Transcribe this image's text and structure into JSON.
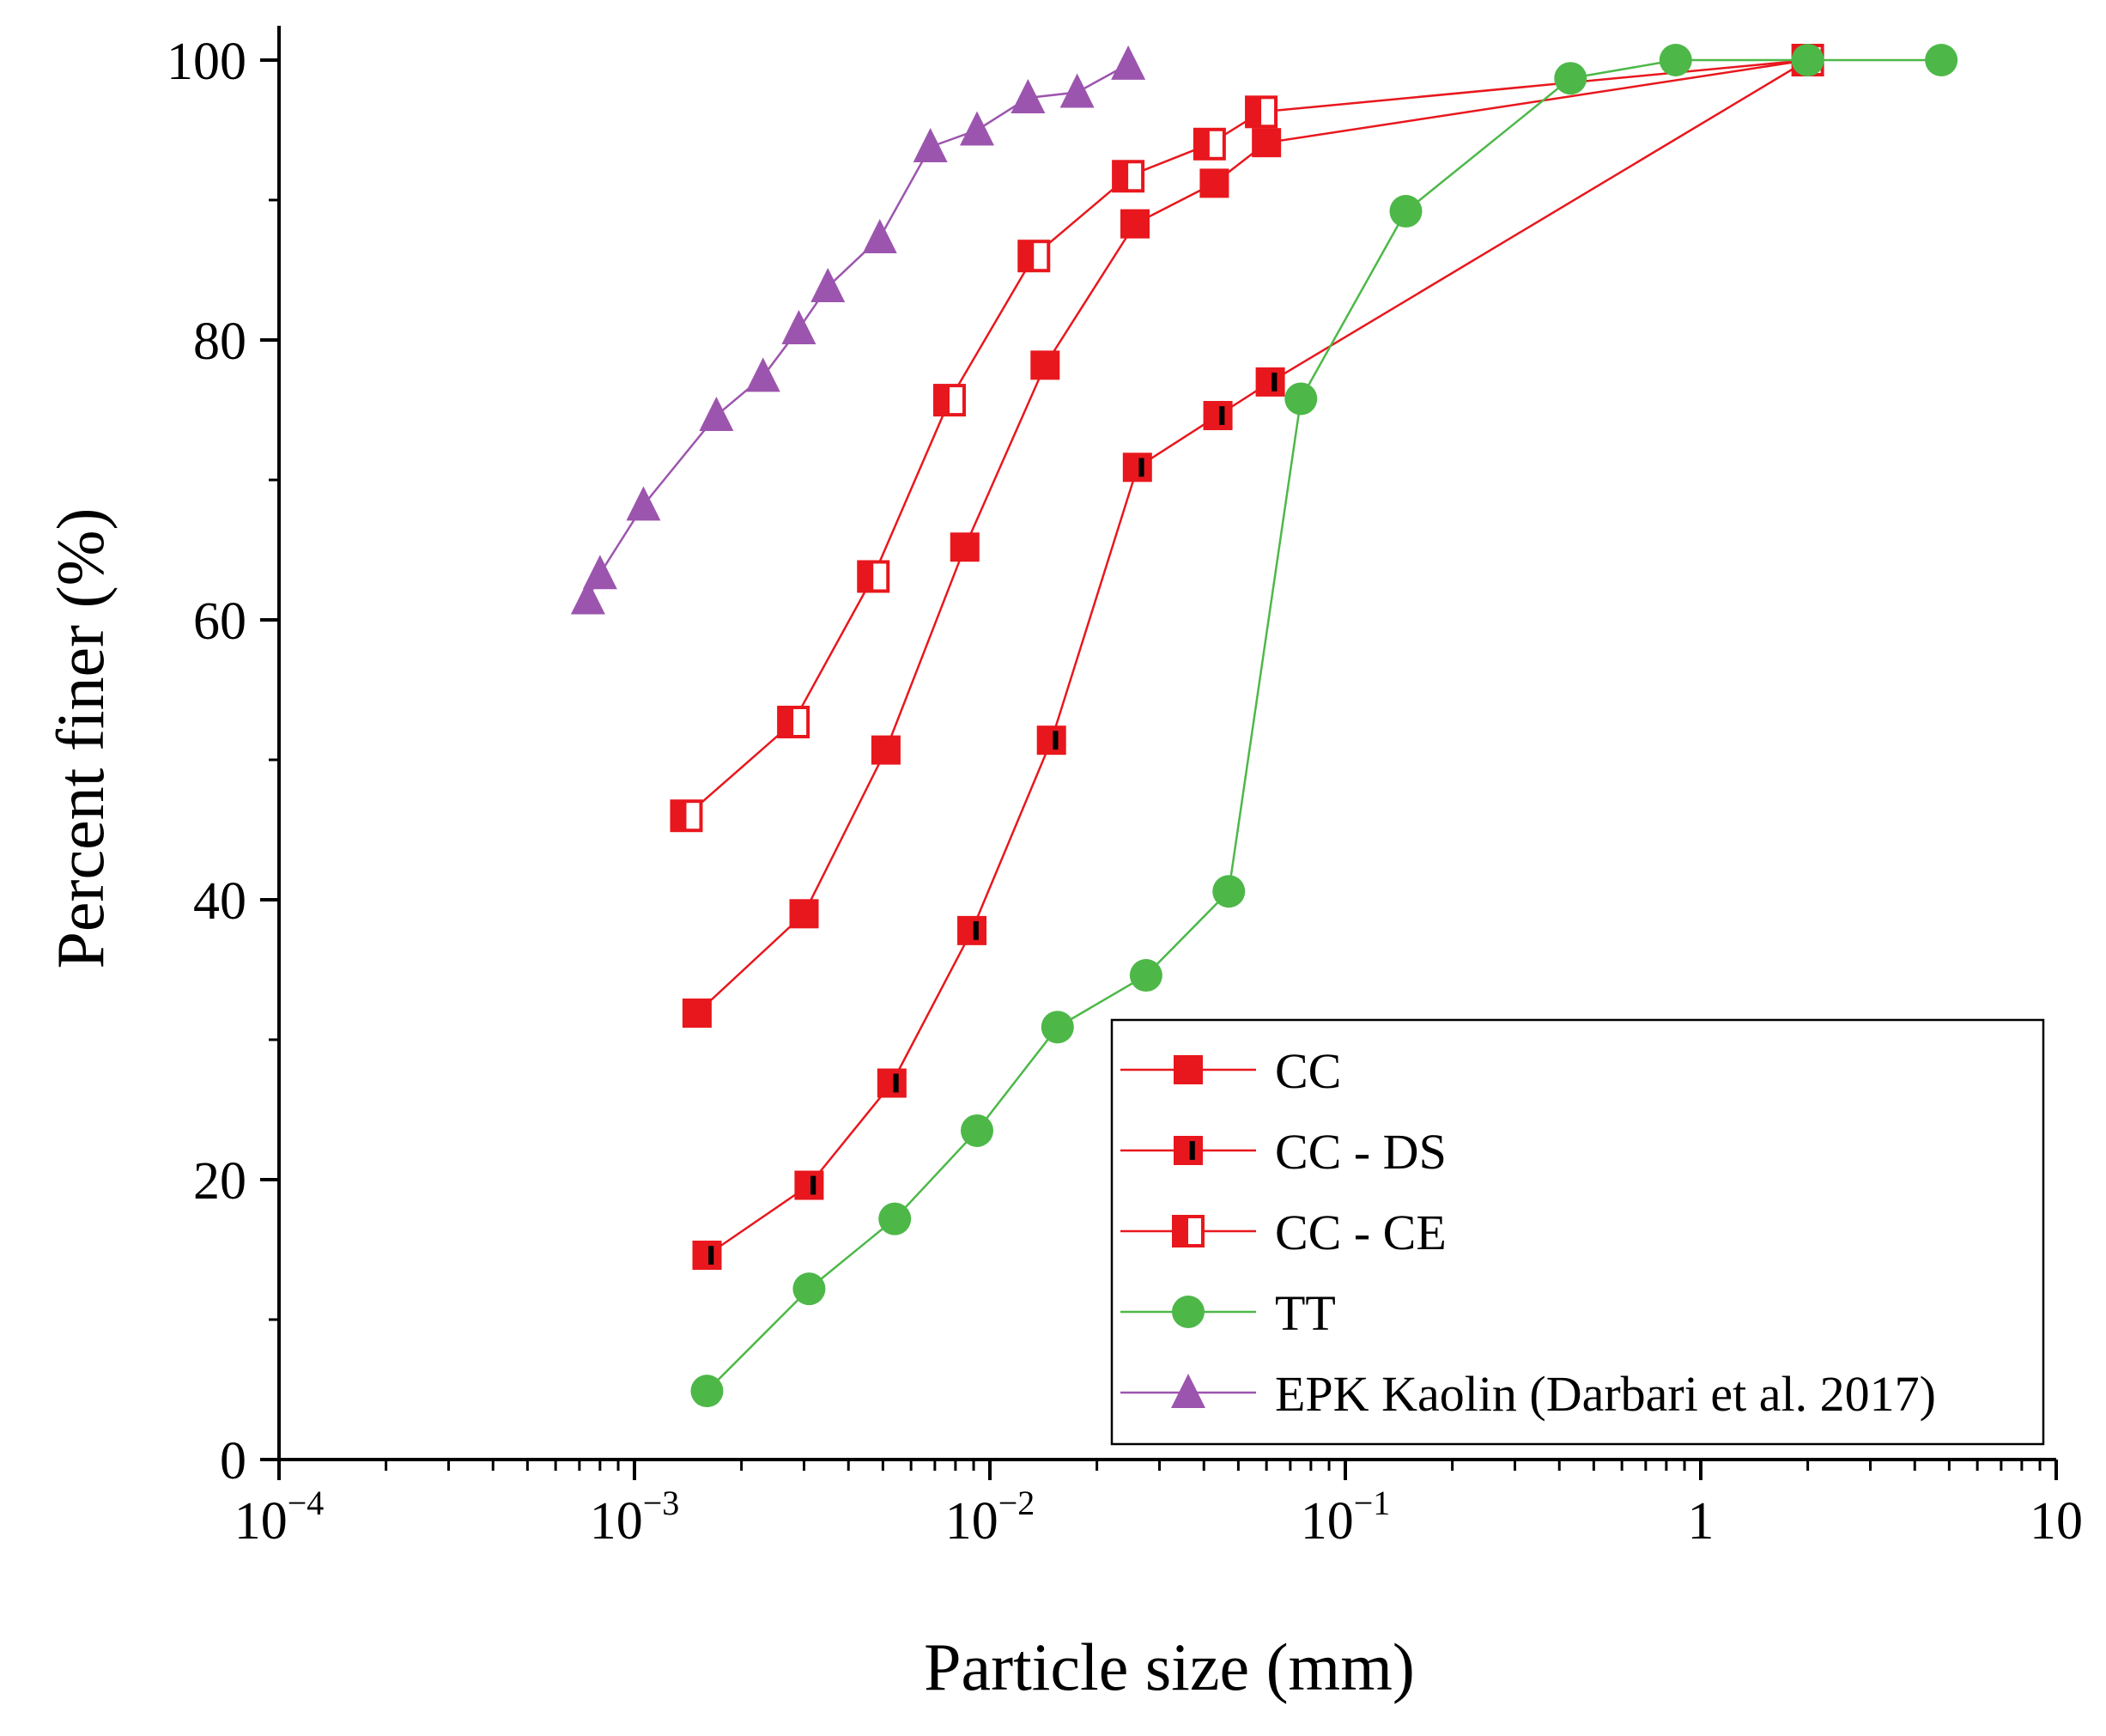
{
  "chart_data": {
    "type": "line",
    "title": "",
    "xlabel": "Particle size (mm)",
    "ylabel": "Percent finer (%)",
    "xscale": "log",
    "xlim": [
      0.0001,
      10
    ],
    "ylim": [
      0,
      100
    ],
    "x_ticks": [
      {
        "value": 0.0001,
        "base": "10",
        "exp": "−4"
      },
      {
        "value": 0.001,
        "base": "10",
        "exp": "−3"
      },
      {
        "value": 0.01,
        "base": "10",
        "exp": "−2"
      },
      {
        "value": 0.1,
        "base": "10",
        "exp": "−1"
      },
      {
        "value": 1,
        "base": "1",
        "exp": ""
      },
      {
        "value": 10,
        "base": "10",
        "exp": ""
      }
    ],
    "y_ticks": [
      0,
      20,
      40,
      60,
      80,
      100
    ],
    "legend_position": "bottom-right",
    "series": [
      {
        "name": "CC",
        "color": "#e8171d",
        "marker": "square-filled",
        "x": [
          0.0015,
          0.003,
          0.0051,
          0.0085,
          0.0143,
          0.0256,
          0.0428,
          0.06,
          2.0
        ],
        "y": [
          31.9,
          39.0,
          50.7,
          65.2,
          78.2,
          88.3,
          91.2,
          94.1,
          100
        ]
      },
      {
        "name": "CC - DS",
        "color": "#e8171d",
        "marker": "square-black-bar",
        "x": [
          0.0016,
          0.0031,
          0.0053,
          0.0089,
          0.0149,
          0.026,
          0.0438,
          0.0615,
          2.0
        ],
        "y": [
          14.6,
          19.6,
          26.9,
          37.8,
          51.4,
          70.9,
          74.6,
          77.0,
          100
        ]
      },
      {
        "name": "CC - CE",
        "color": "#e8171d",
        "marker": "square-half-open",
        "x": [
          0.0014,
          0.0028,
          0.0047,
          0.0077,
          0.0133,
          0.0245,
          0.0415,
          0.058,
          2.0
        ],
        "y": [
          46.0,
          52.7,
          63.1,
          75.7,
          86.0,
          91.7,
          94.0,
          96.3,
          100
        ]
      },
      {
        "name": "TT",
        "color": "#4db848",
        "marker": "circle",
        "x": [
          0.0016,
          0.0031,
          0.0054,
          0.0092,
          0.0155,
          0.0275,
          0.047,
          0.075,
          0.148,
          0.43,
          0.85,
          2.0,
          4.75
        ],
        "y": [
          4.9,
          12.2,
          17.2,
          23.5,
          30.9,
          34.6,
          40.6,
          75.8,
          89.2,
          98.7,
          100,
          100,
          100
        ]
      },
      {
        "name": "EPK Kaolin (Darbari et al. 2017)",
        "color": "#9c55ae",
        "marker": "triangle",
        "x": [
          0.00074,
          0.0008,
          0.00106,
          0.0017,
          0.0023,
          0.0029,
          0.0035,
          0.0049,
          0.0068,
          0.0092,
          0.0128,
          0.0176,
          0.0245
        ],
        "y": [
          61.5,
          63.3,
          68.2,
          74.6,
          77.4,
          80.8,
          83.8,
          87.3,
          93.8,
          95.0,
          97.3,
          97.7,
          99.7
        ]
      }
    ]
  }
}
